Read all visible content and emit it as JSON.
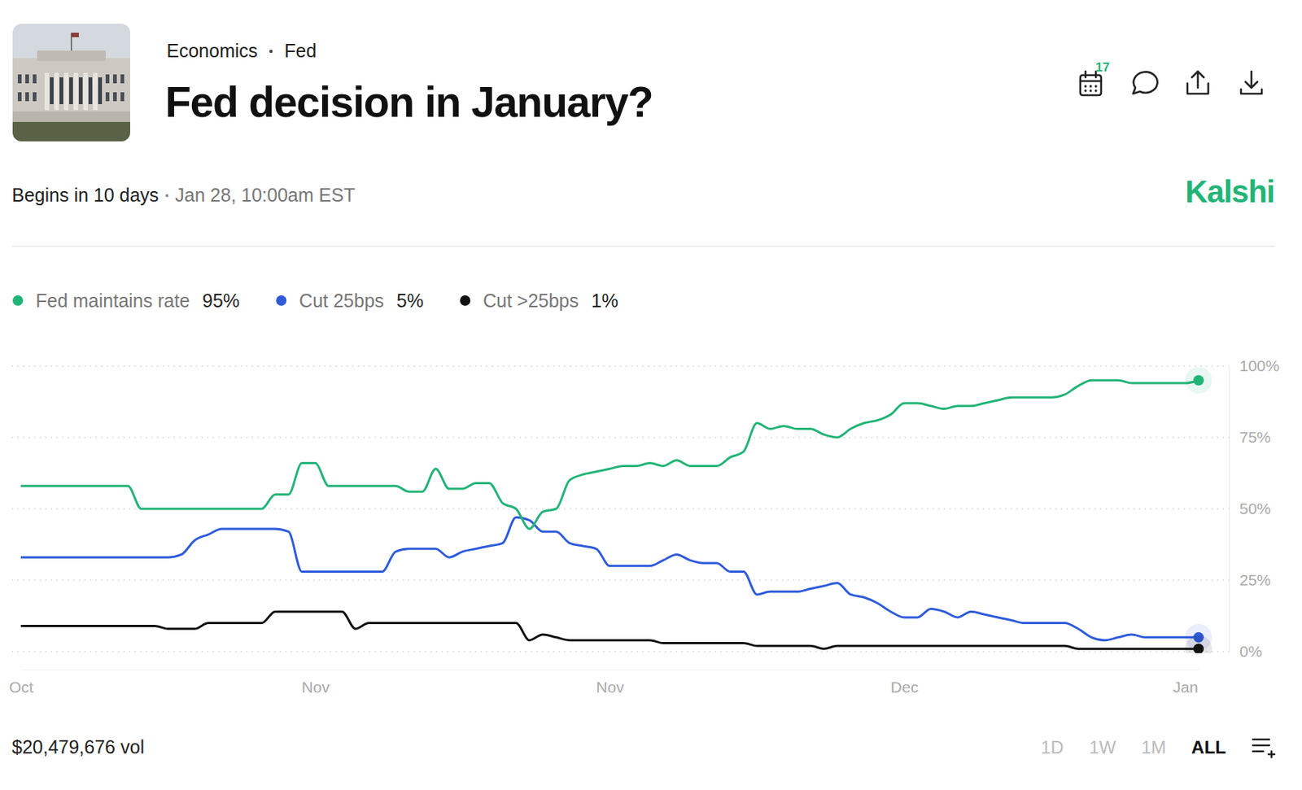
{
  "header": {
    "category": "Economics",
    "subcategory": "Fed",
    "begins": "Begins in 10 days",
    "date": "Jan 28, 10:00am EST",
    "brand": "Kalshi",
    "calendar_badge": "17"
  },
  "footer": {
    "volume": "$20,479,676 vol",
    "ranges": [
      "1D",
      "1W",
      "1M",
      "ALL"
    ],
    "selected_range": "ALL"
  },
  "chart_data": {
    "type": "line",
    "title": "Fed decision in January?",
    "categories": [
      "Oct",
      null,
      null,
      null,
      null,
      null,
      null,
      null,
      null,
      null,
      null,
      null,
      null,
      null,
      null,
      null,
      null,
      null,
      null,
      null,
      null,
      null,
      "Nov",
      null,
      null,
      null,
      null,
      null,
      null,
      null,
      null,
      null,
      null,
      null,
      null,
      null,
      null,
      null,
      null,
      null,
      null,
      null,
      null,
      null,
      "Nov",
      null,
      null,
      null,
      null,
      null,
      null,
      null,
      null,
      null,
      null,
      null,
      null,
      null,
      null,
      null,
      null,
      null,
      null,
      null,
      null,
      null,
      "Dec",
      null,
      null,
      null,
      null,
      null,
      null,
      null,
      null,
      null,
      null,
      null,
      null,
      null,
      null,
      null,
      null,
      null,
      null,
      null,
      null,
      "Jan",
      null
    ],
    "series": [
      {
        "name": "Fed maintains rate",
        "color": "#22b477",
        "current": {
          "value": 95,
          "label": "95%"
        },
        "values": [
          58,
          58,
          58,
          58,
          58,
          58,
          58,
          58,
          58,
          50,
          50,
          50,
          50,
          50,
          50,
          50,
          50,
          50,
          50,
          55,
          55,
          66,
          66,
          58,
          58,
          58,
          58,
          58,
          58,
          56,
          56,
          64,
          57,
          57,
          59,
          59,
          52,
          50,
          43,
          49,
          50,
          60,
          62,
          63,
          64,
          65,
          65,
          66,
          65,
          67,
          65,
          65,
          65,
          68,
          70,
          80,
          78,
          79,
          78,
          78,
          76,
          75,
          78,
          80,
          81,
          83,
          87,
          87,
          86,
          85,
          86,
          86,
          87,
          88,
          89,
          89,
          89,
          89,
          90,
          93,
          95,
          95,
          95,
          94,
          94,
          94,
          94,
          94,
          95
        ]
      },
      {
        "name": "Cut 25bps",
        "color": "#2f5bdb",
        "current": {
          "value": 5,
          "label": "5%"
        },
        "values": [
          33,
          33,
          33,
          33,
          33,
          33,
          33,
          33,
          33,
          33,
          33,
          33,
          34,
          39,
          41,
          43,
          43,
          43,
          43,
          43,
          42,
          28,
          28,
          28,
          28,
          28,
          28,
          28,
          35,
          36,
          36,
          36,
          33,
          35,
          36,
          37,
          38,
          47,
          46,
          42,
          42,
          38,
          37,
          36,
          30,
          30,
          30,
          30,
          32,
          34,
          32,
          31,
          31,
          28,
          28,
          20,
          21,
          21,
          21,
          22,
          23,
          24,
          20,
          19,
          17,
          14,
          12,
          12,
          15,
          14,
          12,
          14,
          13,
          12,
          11,
          10,
          10,
          10,
          10,
          8,
          5,
          4,
          5,
          6,
          5,
          5,
          5,
          5,
          5
        ]
      },
      {
        "name": "Cut >25bps",
        "color": "#111111",
        "current": {
          "value": 1,
          "label": "1%"
        },
        "values": [
          9,
          9,
          9,
          9,
          9,
          9,
          9,
          9,
          9,
          9,
          9,
          8,
          8,
          8,
          10,
          10,
          10,
          10,
          10,
          14,
          14,
          14,
          14,
          14,
          14,
          8,
          10,
          10,
          10,
          10,
          10,
          10,
          10,
          10,
          10,
          10,
          10,
          10,
          4,
          6,
          5,
          4,
          4,
          4,
          4,
          4,
          4,
          4,
          3,
          3,
          3,
          3,
          3,
          3,
          3,
          2,
          2,
          2,
          2,
          2,
          1,
          2,
          2,
          2,
          2,
          2,
          2,
          2,
          2,
          2,
          2,
          2,
          2,
          2,
          2,
          2,
          2,
          2,
          2,
          1,
          1,
          1,
          1,
          1,
          1,
          1,
          1,
          1,
          1
        ]
      }
    ],
    "ylim": [
      0,
      100
    ],
    "yticks": [
      {
        "value": 0,
        "label": "0%"
      },
      {
        "value": 25,
        "label": "25%"
      },
      {
        "value": 50,
        "label": "50%"
      },
      {
        "value": 75,
        "label": "75%"
      },
      {
        "value": 100,
        "label": "100%"
      }
    ],
    "grid": true,
    "legend": "top-left"
  }
}
